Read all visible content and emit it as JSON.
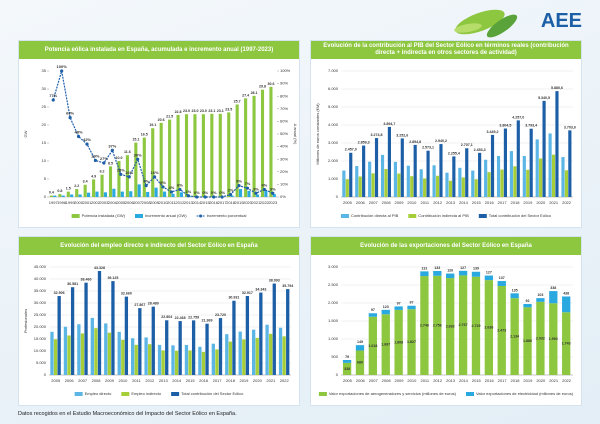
{
  "header": {
    "logo": "AEE"
  },
  "footer": "Datos recogidos en el Estudio Macroeconómico del Impacto del Sector Eólico en España.",
  "chart_data": [
    {
      "type": "bar",
      "title": "Potencia eólica instalada en España, acumulada e incremento anual (1997-2023)",
      "categories": [
        "1997",
        "1998",
        "1999",
        "2000",
        "2001",
        "2002",
        "2003",
        "2004",
        "2005",
        "2006",
        "2007",
        "2008",
        "2009",
        "2010",
        "2011",
        "2012",
        "2013",
        "2014",
        "2015",
        "2016",
        "2017",
        "2018",
        "2019",
        "2020",
        "2021",
        "2022",
        "2023"
      ],
      "ylabel": "GW",
      "y2label": "Δ anual (%)",
      "ylim": [
        0,
        35
      ],
      "yticks": [
        0,
        5,
        10,
        15,
        20,
        25,
        30,
        35
      ],
      "y2lim": [
        0,
        100
      ],
      "y2ticks": [
        {
          "value": 0,
          "label": "0%"
        },
        {
          "value": 10,
          "label": "10%"
        },
        {
          "value": 20,
          "label": "20%"
        },
        {
          "value": 30,
          "label": "30%"
        },
        {
          "value": 40,
          "label": "40%"
        },
        {
          "value": 50,
          "label": "50%"
        },
        {
          "value": 60,
          "label": "60%"
        },
        {
          "value": 70,
          "label": "70%"
        },
        {
          "value": 80,
          "label": "80%"
        },
        {
          "value": 90,
          "label": "90%"
        },
        {
          "value": 100,
          "label": "100%"
        }
      ],
      "grid": false,
      "series": [
        {
          "name": "Potencia instalada (GW)",
          "color": "#8dc63f",
          "values": [
            0.4,
            0.8,
            1.5,
            2.2,
            3.4,
            4.9,
            6.2,
            8.5,
            10.0,
            11.6,
            15.1,
            16.5,
            19.1,
            20.6,
            21.5,
            22.8,
            23.0,
            23.0,
            23.0,
            23.1,
            23.1,
            23.5,
            25.7,
            27.4,
            28.1,
            29.8,
            30.6
          ],
          "value_labels": [
            "0.4",
            "0.8",
            "1.5",
            "2.2",
            "3.4",
            "4.9",
            "6.2",
            "8.5",
            "10.0",
            "11.6",
            "15.1",
            "16.5",
            "19.1",
            "20.6",
            "21.5",
            "22.8",
            "23.0",
            "23.0",
            "23.0",
            "23.1",
            "23.1",
            "23.5",
            "25.7",
            "27.4",
            "28.1",
            "29.8",
            "30.6"
          ]
        },
        {
          "name": "Incremento anual (GW)",
          "color": "#29a9e0",
          "values": [
            0.4,
            0.4,
            0.7,
            0.7,
            1.2,
            1.5,
            1.3,
            2.3,
            1.5,
            1.6,
            3.5,
            1.4,
            2.6,
            1.5,
            0.9,
            1.3,
            0.2,
            0.0,
            0.0,
            0.1,
            0.0,
            0.4,
            2.2,
            1.7,
            0.7,
            1.7,
            0.8
          ]
        },
        {
          "name": "Incremento porcentual",
          "color": "#1f5fa8",
          "type": "line",
          "axis": "y2",
          "values": [
            77,
            100,
            63,
            48,
            42,
            29,
            27,
            37,
            18,
            16,
            30,
            9,
            16,
            8,
            4,
            6,
            1,
            0,
            0,
            0,
            0,
            2,
            9,
            7,
            3,
            6,
            3
          ],
          "value_labels": [
            "77%",
            "100%",
            "63%",
            "48%",
            "42%",
            "29%",
            "27%",
            "37%",
            "18%",
            "16%",
            "30%",
            "9%",
            "16%",
            "8%",
            "4%",
            "6%",
            "1%",
            "0%",
            "0%",
            "0%",
            "0%",
            "2%",
            "9%",
            "7%",
            "3%",
            "6%",
            "3%"
          ]
        }
      ]
    },
    {
      "type": "bar",
      "title": "Evolución de la contribución al PIB del Sector Eólico en términos reales (contribución directa + indirecta en otros sectores de actividad)",
      "categories": [
        "2005",
        "2006",
        "2007",
        "2008",
        "2009",
        "2010",
        "2011",
        "2012",
        "2013",
        "2014",
        "2015",
        "2016",
        "2017",
        "2018",
        "2019",
        "2020",
        "2021",
        "2022"
      ],
      "ylabel": "Millones de euros constantes (€M)",
      "ylim": [
        0,
        7000
      ],
      "yticks": [
        0,
        {
          "value": 1000,
          "label": "1.000"
        },
        {
          "value": 2000,
          "label": "2.000"
        },
        {
          "value": 3000,
          "label": "3.000"
        },
        {
          "value": 4000,
          "label": "4.000"
        },
        {
          "value": 5000,
          "label": "5.000"
        },
        {
          "value": 6000,
          "label": "6.000"
        },
        {
          "value": 7000,
          "label": "7.000"
        }
      ],
      "grid": true,
      "series": [
        {
          "name": "Contribución directa al PIB",
          "color": "#5bb5e5",
          "values": [
            1470,
            1720,
            1960,
            2340,
            1950,
            1740,
            1540,
            1760,
            1350,
            1620,
            1470,
            2070,
            2280,
            2550,
            2280,
            3200,
            3530,
            2220
          ]
        },
        {
          "name": "Contribución indirecta al PIB",
          "color": "#a6ce39",
          "values": [
            987,
            1139,
            1315,
            1555,
            1303,
            1155,
            1033,
            1180,
            905,
            1087,
            983,
            1379,
            1524,
            1707,
            1513,
            2140,
            2351,
            1483
          ]
        },
        {
          "name": "Total contribución del Sector Eólico",
          "color": "#1d5fa6",
          "values": [
            2457.0,
            2859.3,
            3274.8,
            3894.7,
            3252.6,
            2894.8,
            2573.1,
            2940.2,
            2255.4,
            2707.1,
            2453.3,
            3449.2,
            3804.5,
            4257.0,
            3793.4,
            5340.5,
            5880.6,
            3703.0
          ],
          "value_labels": [
            "2.457,0",
            "2.859,3",
            "3.274,8",
            "3.894,7",
            "3.252,6",
            "2.894,8",
            "2.573,1",
            "2.940,2",
            "2.255,4",
            "2.707,1",
            "2.453,3",
            "3.449,2",
            "3.804,5",
            "4.257,0",
            "3.793,4",
            "5.340,5",
            "5.880,6",
            "3.703,0"
          ]
        }
      ]
    },
    {
      "type": "bar",
      "title": "Evolución del empleo directo e indirecto del Sector Eólico en España",
      "categories": [
        "2005",
        "2006",
        "2007",
        "2008",
        "2009",
        "2010",
        "2011",
        "2012",
        "2013",
        "2014",
        "2015",
        "2016",
        "2017",
        "2018",
        "2019",
        "2020",
        "2021",
        "2022"
      ],
      "ylabel": "Profesionales",
      "ylim": [
        0,
        45000
      ],
      "yticks": [
        0,
        {
          "value": 5000,
          "label": "5.000"
        },
        {
          "value": 10000,
          "label": "10.000"
        },
        {
          "value": 15000,
          "label": "15.000"
        },
        {
          "value": 20000,
          "label": "20.000"
        },
        {
          "value": 25000,
          "label": "25.000"
        },
        {
          "value": 30000,
          "label": "30.000"
        },
        {
          "value": 35000,
          "label": "35.000"
        },
        {
          "value": 40000,
          "label": "40.000"
        },
        {
          "value": 45000,
          "label": "45.000"
        }
      ],
      "grid": true,
      "series": [
        {
          "name": "Empleo directo",
          "color": "#5bb5e5",
          "values": [
            18000,
            20100,
            21150,
            23800,
            21500,
            18000,
            15300,
            15660,
            12540,
            12360,
            12520,
            11750,
            13050,
            17010,
            18100,
            18890,
            20950,
            19690
          ]
        },
        {
          "name": "Empleo indirecto",
          "color": "#a6ce39",
          "values": [
            14906,
            16481,
            17310,
            19528,
            17625,
            14660,
            12567,
            12820,
            10264,
            10108,
            10239,
            9619,
            10670,
            13921,
            14817,
            15453,
            17143,
            16104
          ]
        },
        {
          "name": "Total contribución del Sector Eólico",
          "color": "#1d5fa6",
          "values": [
            32906,
            36581,
            38460,
            43328,
            39125,
            32660,
            27867,
            28480,
            22804,
            22468,
            22759,
            21369,
            23720,
            30931,
            32917,
            34343,
            38093,
            35794
          ],
          "value_labels": [
            "32.906",
            "36.581",
            "38.460",
            "43.328",
            "39.125",
            "32.660",
            "27.867",
            "28.480",
            "22.804",
            "22.468",
            "22.759",
            "21.369",
            "23.720",
            "30.931",
            "32.917",
            "34.343",
            "38.093",
            "35.794"
          ]
        }
      ]
    },
    {
      "type": "stacked_bar",
      "title": "Evolución de las exportaciones del Sector Eólico en España",
      "categories": [
        "2005",
        "2006",
        "2007",
        "2008",
        "2009",
        "2010",
        "2011",
        "2012",
        "2013",
        "2014",
        "2015",
        "2016",
        "2017",
        "2018",
        "2019",
        "2020",
        "2021",
        "2022"
      ],
      "ylim": [
        0,
        3000
      ],
      "yticks": [
        0,
        500,
        {
          "value": 1000,
          "label": "1.000"
        },
        {
          "value": 1500,
          "label": "1.500"
        },
        {
          "value": 2000,
          "label": "2.000"
        },
        {
          "value": 2500,
          "label": "2.500"
        },
        {
          "value": 3000,
          "label": "3.000"
        }
      ],
      "grid": true,
      "series": [
        {
          "name": "Valor exportaciones de aerogeneradores y servicios (millones de euros)",
          "color": "#8dc63f",
          "values": [
            338,
            680,
            1618,
            1687,
            1808,
            1827,
            2748,
            2756,
            2692,
            2767,
            2729,
            2636,
            2473,
            2134,
            1880,
            2032,
            1993,
            1743
          ],
          "value_labels": [
            "338",
            "680",
            "1.618",
            "1.687",
            "1.808",
            "1.827",
            "2.748",
            "2.756",
            "2.692",
            "2.767",
            "2.729",
            "2.636",
            "2.473",
            "2.134",
            "1.880",
            "2.032",
            "1.993",
            "1.743"
          ]
        },
        {
          "name": "Valor exportaciones de electricidad (millones de euros)",
          "color": "#29a9e0",
          "labels": true,
          "values": [
            79,
            149,
            97,
            123,
            97,
            97,
            131,
            133,
            126,
            127,
            139,
            127,
            137,
            135,
            92,
            103,
            338,
            438
          ]
        }
      ]
    }
  ]
}
